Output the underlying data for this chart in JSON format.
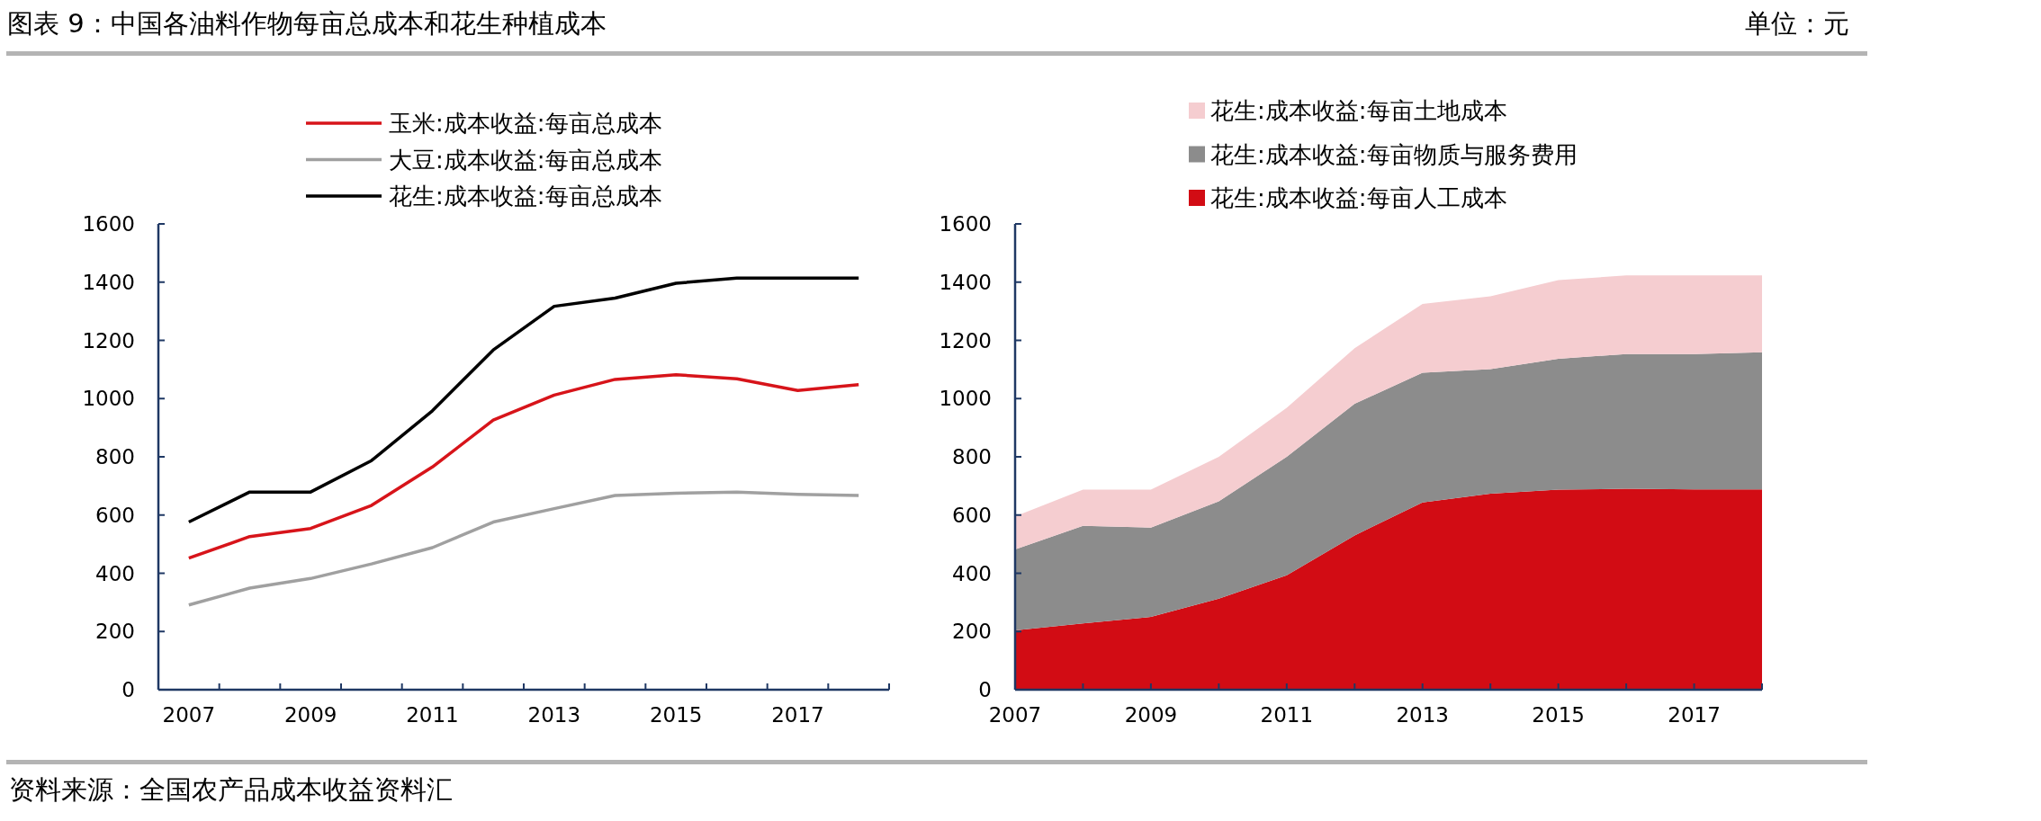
{
  "chart_data": [
    {
      "type": "line",
      "title": "图表 9：中国各油料作物每亩总成本和花生种植成本",
      "annotations": [
        "单位：元",
        "资料来源：全国农产品成本收益资料汇"
      ],
      "categories": [
        "2007",
        null,
        "2009",
        null,
        "2011",
        null,
        "2013",
        null,
        "2015",
        null,
        "2017",
        null
      ],
      "series": [
        {
          "name": "玉米:成本收益:每亩总成本",
          "color": "#d7141a",
          "values": [
            452,
            526,
            554,
            633,
            765,
            926,
            1012,
            1066,
            1082,
            1068,
            1028,
            1048
          ]
        },
        {
          "name": "大豆:成本收益:每亩总成本",
          "color": "#a0a0a0",
          "values": [
            291,
            349,
            382,
            432,
            488,
            576,
            622,
            667,
            675,
            679,
            671,
            667
          ]
        },
        {
          "name": "花生:成本收益:每亩总成本",
          "color": "#000000",
          "values": [
            576,
            679,
            679,
            787,
            958,
            1167,
            1317,
            1345,
            1396,
            1414,
            1414,
            1414
          ]
        }
      ],
      "ylim": [
        0,
        1600
      ],
      "yticks": [
        0,
        200,
        400,
        600,
        800,
        1000,
        1200,
        1400,
        1600
      ],
      "legend": "top",
      "grid": false
    },
    {
      "type": "area",
      "stacked": true,
      "categories": [
        "2007",
        null,
        "2009",
        null,
        "2011",
        null,
        "2013",
        null,
        "2015",
        null,
        "2017",
        null
      ],
      "series": [
        {
          "name": "花生:成本收益:每亩人工成本",
          "color": "#d20c14",
          "values": [
            204,
            228,
            250,
            313,
            393,
            530,
            643,
            673,
            687,
            690,
            688,
            688
          ]
        },
        {
          "name": "花生:成本收益:每亩物质与服务费用",
          "color": "#8c8c8c",
          "values": [
            278,
            335,
            307,
            334,
            407,
            452,
            446,
            428,
            450,
            463,
            465,
            471
          ]
        },
        {
          "name": "花生:成本收益:每亩土地成本",
          "color": "#f5cdd0",
          "values": [
            113,
            124,
            130,
            153,
            168,
            191,
            236,
            250,
            270,
            270,
            270,
            264
          ]
        }
      ],
      "ylim": [
        0,
        1600
      ],
      "yticks": [
        0,
        200,
        400,
        600,
        800,
        1000,
        1200,
        1400,
        1600
      ],
      "legend": "top",
      "grid": false
    }
  ]
}
